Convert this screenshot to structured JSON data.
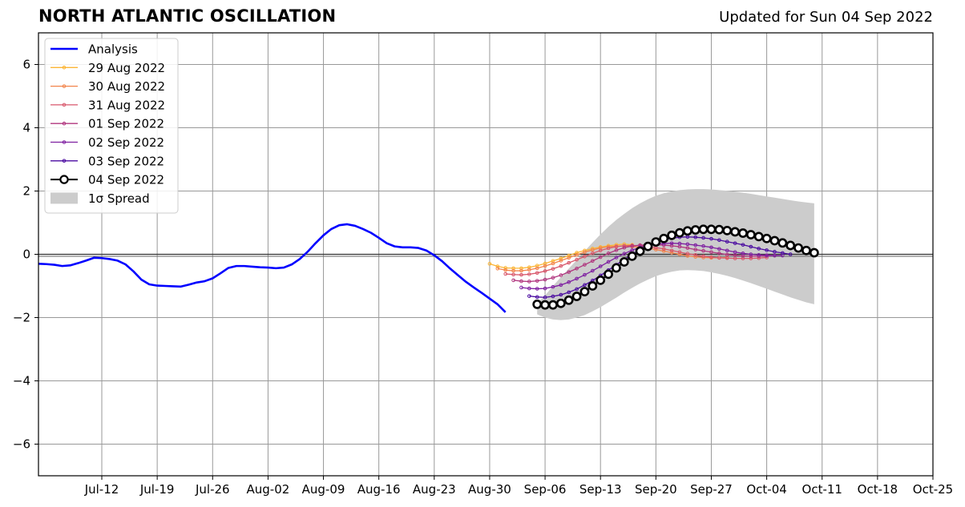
{
  "header": {
    "title": "NORTH ATLANTIC OSCILLATION",
    "updated": "Updated for Sun 04 Sep 2022"
  },
  "chart_data": {
    "type": "line",
    "title": "NORTH ATLANTIC OSCILLATION",
    "subtitle": "Updated for Sun 04 Sep 2022",
    "xlabel": "",
    "ylabel": "",
    "xlim": [
      "2022-07-04",
      "2022-10-25"
    ],
    "ylim": [
      -7,
      7
    ],
    "grid": true,
    "legend_position": "top-left",
    "x_ticks": [
      "2022-07-12",
      "2022-07-19",
      "2022-07-26",
      "2022-08-02",
      "2022-08-09",
      "2022-08-16",
      "2022-08-23",
      "2022-08-30",
      "2022-09-06",
      "2022-09-13",
      "2022-09-20",
      "2022-09-27",
      "2022-10-04",
      "2022-10-11",
      "2022-10-18",
      "2022-10-25"
    ],
    "x_tick_labels": [
      "Jul-12",
      "Jul-19",
      "Jul-26",
      "Aug-02",
      "Aug-09",
      "Aug-16",
      "Aug-23",
      "Aug-30",
      "Sep-06",
      "Sep-13",
      "Sep-20",
      "Sep-27",
      "Oct-04",
      "Oct-11",
      "Oct-18",
      "Oct-25"
    ],
    "y_ticks": [
      -6,
      -4,
      -2,
      0,
      2,
      4,
      6
    ],
    "y_tick_labels": [
      "−6",
      "−4",
      "−2",
      "0",
      "2",
      "4",
      "6"
    ],
    "analysis": {
      "name": "Analysis",
      "color": "#0000ff",
      "start": "2022-07-04",
      "values": [
        -0.3,
        -0.31,
        -0.33,
        -0.37,
        -0.35,
        -0.28,
        -0.2,
        -0.11,
        -0.12,
        -0.15,
        -0.2,
        -0.32,
        -0.54,
        -0.8,
        -0.95,
        -0.99,
        -1.0,
        -1.01,
        -1.02,
        -0.96,
        -0.89,
        -0.85,
        -0.76,
        -0.6,
        -0.43,
        -0.37,
        -0.37,
        -0.39,
        -0.41,
        -0.42,
        -0.44,
        -0.42,
        -0.32,
        -0.15,
        0.08,
        0.35,
        0.6,
        0.8,
        0.92,
        0.95,
        0.9,
        0.8,
        0.68,
        0.52,
        0.35,
        0.25,
        0.22,
        0.22,
        0.2,
        0.12,
        -0.03,
        -0.22,
        -0.45,
        -0.66,
        -0.87,
        -1.05,
        -1.22,
        -1.4,
        -1.58,
        -1.83
      ]
    },
    "series": [
      {
        "name": "29 Aug 2022",
        "color": "#fbb535",
        "start": "2022-08-30",
        "values": [
          -0.3,
          -0.38,
          -0.43,
          -0.44,
          -0.44,
          -0.41,
          -0.36,
          -0.29,
          -0.21,
          -0.13,
          -0.04,
          0.05,
          0.12,
          0.18,
          0.23,
          0.27,
          0.3,
          0.32,
          0.3
        ]
      },
      {
        "name": "30 Aug 2022",
        "color": "#f2844b",
        "start": "2022-08-31",
        "values": [
          -0.45,
          -0.5,
          -0.52,
          -0.52,
          -0.49,
          -0.44,
          -0.37,
          -0.29,
          -0.2,
          -0.11,
          -0.02,
          0.07,
          0.14,
          0.2,
          0.24,
          0.26,
          0.26,
          0.24,
          0.22,
          0.19,
          0.15,
          0.1,
          0.05,
          0.0,
          -0.05,
          -0.08,
          -0.1,
          -0.11,
          -0.11,
          -0.1
        ]
      },
      {
        "name": "31 Aug 2022",
        "color": "#d8576b",
        "start": "2022-09-01",
        "values": [
          -0.62,
          -0.64,
          -0.65,
          -0.63,
          -0.59,
          -0.53,
          -0.46,
          -0.37,
          -0.27,
          -0.17,
          -0.07,
          0.03,
          0.12,
          0.19,
          0.24,
          0.27,
          0.28,
          0.27,
          0.24,
          0.21,
          0.17,
          0.12,
          0.07,
          0.02,
          -0.02,
          -0.06,
          -0.09,
          -0.11,
          -0.12,
          -0.13,
          -0.13,
          -0.13,
          -0.12,
          -0.1
        ]
      },
      {
        "name": "01 Sep 2022",
        "color": "#b0357e",
        "start": "2022-09-02",
        "values": [
          -0.82,
          -0.85,
          -0.86,
          -0.84,
          -0.8,
          -0.74,
          -0.66,
          -0.56,
          -0.45,
          -0.33,
          -0.21,
          -0.09,
          0.03,
          0.13,
          0.21,
          0.26,
          0.29,
          0.3,
          0.3,
          0.29,
          0.27,
          0.24,
          0.2,
          0.15,
          0.11,
          0.07,
          0.03,
          -0.01,
          -0.03,
          -0.05,
          -0.06,
          -0.06,
          -0.05,
          -0.04
        ]
      },
      {
        "name": "02 Sep 2022",
        "color": "#7e1fa1",
        "start": "2022-09-03",
        "values": [
          -1.05,
          -1.08,
          -1.09,
          -1.08,
          -1.03,
          -0.97,
          -0.88,
          -0.77,
          -0.65,
          -0.52,
          -0.38,
          -0.24,
          -0.1,
          0.02,
          0.13,
          0.22,
          0.28,
          0.32,
          0.34,
          0.35,
          0.34,
          0.32,
          0.29,
          0.26,
          0.22,
          0.17,
          0.12,
          0.07,
          0.03,
          0.0,
          -0.02,
          -0.03,
          -0.04,
          -0.04
        ]
      },
      {
        "name": "03 Sep 2022",
        "color": "#4a0aa0",
        "start": "2022-09-04",
        "values": [
          -1.32,
          -1.35,
          -1.36,
          -1.33,
          -1.28,
          -1.2,
          -1.1,
          -0.97,
          -0.83,
          -0.67,
          -0.5,
          -0.33,
          -0.16,
          0.0,
          0.15,
          0.28,
          0.38,
          0.46,
          0.51,
          0.54,
          0.55,
          0.54,
          0.52,
          0.49,
          0.45,
          0.4,
          0.35,
          0.3,
          0.24,
          0.18,
          0.13,
          0.08,
          0.04,
          0.0
        ]
      },
      {
        "name": "04 Sep 2022",
        "color": "#000000",
        "start": "2022-09-05",
        "values": [
          -1.58,
          -1.6,
          -1.6,
          -1.55,
          -1.45,
          -1.33,
          -1.18,
          -1.0,
          -0.82,
          -0.63,
          -0.43,
          -0.24,
          -0.06,
          0.1,
          0.25,
          0.39,
          0.5,
          0.6,
          0.68,
          0.74,
          0.77,
          0.79,
          0.79,
          0.78,
          0.75,
          0.71,
          0.67,
          0.62,
          0.56,
          0.5,
          0.43,
          0.36,
          0.28,
          0.2,
          0.12,
          0.05
        ]
      }
    ],
    "spread": {
      "name": "1σ Spread",
      "color": "#cccccc",
      "start": "2022-09-05",
      "upper": [
        -1.55,
        -1.3,
        -1.0,
        -0.72,
        -0.45,
        -0.18,
        0.1,
        0.37,
        0.63,
        0.87,
        1.09,
        1.28,
        1.46,
        1.61,
        1.74,
        1.85,
        1.93,
        1.99,
        2.03,
        2.05,
        2.06,
        2.06,
        2.05,
        2.03,
        2.01,
        1.98,
        1.95,
        1.91,
        1.87,
        1.83,
        1.79,
        1.75,
        1.71,
        1.67,
        1.64,
        1.61
      ],
      "lower": [
        -1.9,
        -2.0,
        -2.06,
        -2.08,
        -2.06,
        -2.0,
        -1.92,
        -1.8,
        -1.67,
        -1.52,
        -1.37,
        -1.21,
        -1.06,
        -0.92,
        -0.8,
        -0.69,
        -0.61,
        -0.55,
        -0.51,
        -0.5,
        -0.51,
        -0.53,
        -0.57,
        -0.62,
        -0.68,
        -0.75,
        -0.83,
        -0.91,
        -1.0,
        -1.09,
        -1.18,
        -1.27,
        -1.36,
        -1.44,
        -1.52,
        -1.58
      ]
    }
  }
}
